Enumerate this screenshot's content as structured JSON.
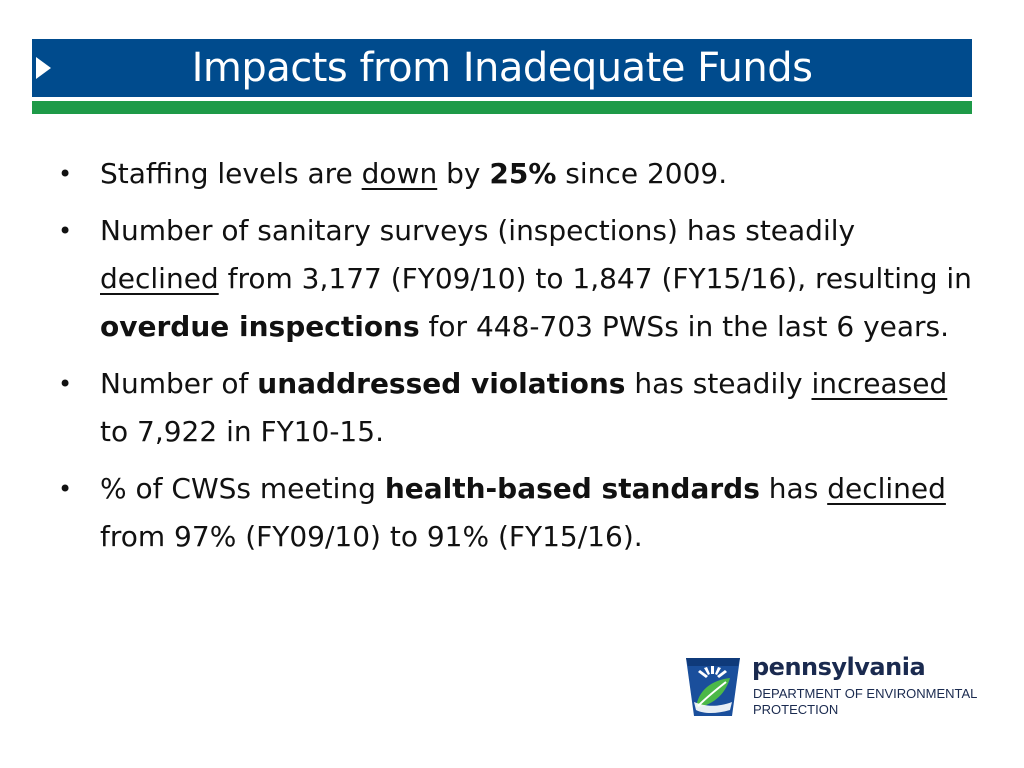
{
  "slide": {
    "title": "Impacts from Inadequate Funds"
  },
  "bullets": [
    {
      "parts": [
        "Staffing levels are ",
        "down",
        " by ",
        "25%",
        " since 2009."
      ]
    },
    {
      "parts": [
        "Number of sanitary surveys (inspections) has steadily ",
        "declined",
        " from 3,177 (FY09/10) to 1,847 (FY15/16), resulting in ",
        "overdue inspections",
        " for 448-703 PWSs in the last 6 years."
      ]
    },
    {
      "parts": [
        "Number of ",
        "unaddressed violations",
        " has steadily ",
        "increased",
        " to 7,922 in FY10-15."
      ]
    },
    {
      "parts": [
        "% of CWSs meeting ",
        "health-based standards",
        " has ",
        "declined",
        " from 97% (FY09/10) to 91% (FY15/16)."
      ]
    }
  ],
  "logo": {
    "name": "pennsylvania",
    "line1": "DEPARTMENT OF ENVIRONMENTAL",
    "line2": "PROTECTION"
  },
  "colors": {
    "title_bar": "#004b8d",
    "accent_bar": "#1e9a48"
  }
}
